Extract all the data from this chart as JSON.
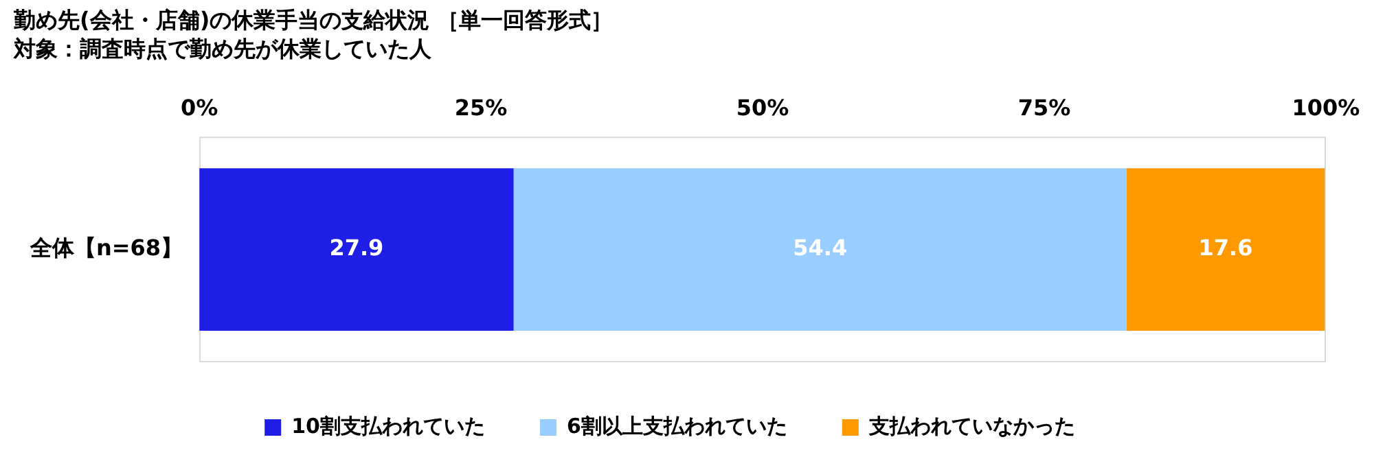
{
  "chart_data": {
    "type": "bar",
    "orientation": "horizontal",
    "stacked": true,
    "title": "勤め先(会社・店舗)の休業手当の支給状況 ［単一回答形式］",
    "subtitle": "対象：調査時点で勤め先が休業していた人",
    "categories": [
      "全体【n=68】"
    ],
    "series": [
      {
        "name": "10割支払われていた",
        "color": "#1e1ee6",
        "values": [
          27.9
        ]
      },
      {
        "name": "6割以上支払われていた",
        "color": "#99ccff",
        "values": [
          54.4
        ]
      },
      {
        "name": "支払われていなかった",
        "color": "#ff9900",
        "values": [
          17.6
        ]
      }
    ],
    "xlim": [
      0,
      100
    ],
    "xticks": [
      {
        "value": 0,
        "label": "0%"
      },
      {
        "value": 25,
        "label": "25%"
      },
      {
        "value": 50,
        "label": "50%"
      },
      {
        "value": 75,
        "label": "75%"
      },
      {
        "value": 100,
        "label": "100%"
      }
    ],
    "data_labels": true,
    "grid": false,
    "legend": "bottom"
  }
}
